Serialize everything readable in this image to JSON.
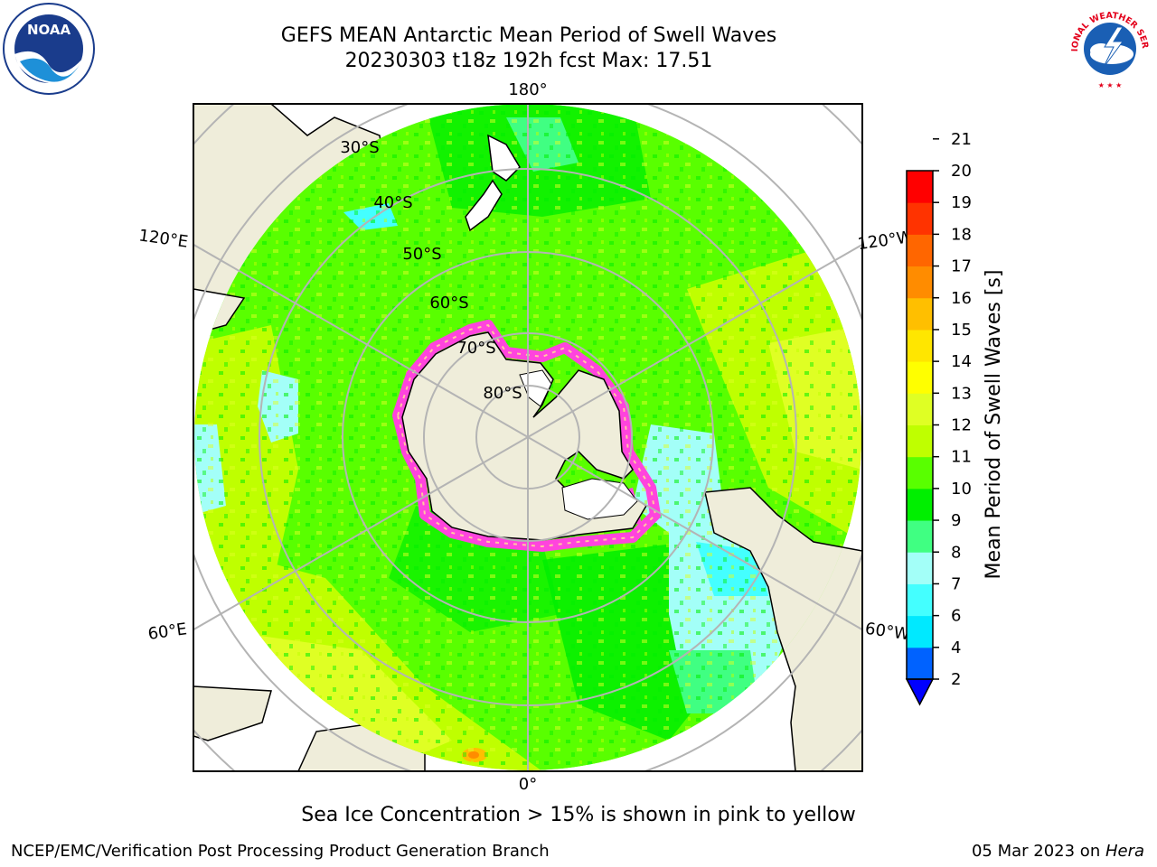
{
  "header": {
    "title_line1": "GEFS MEAN Antarctic Mean Period of Swell Waves",
    "title_line2": "20230303 t18z 192h fcst   Max: 17.51"
  },
  "logos": {
    "left": "noaa-logo",
    "left_text": "NOAA",
    "right": "national-weather-service-logo",
    "right_text": "NATIONAL WEATHER SERVICE"
  },
  "map": {
    "projection": "south-polar-stereographic",
    "longitude_labels": [
      "180°",
      "120°E",
      "120°W",
      "60°E",
      "60°W",
      "0°"
    ],
    "latitude_labels": [
      "30°S",
      "40°S",
      "50°S",
      "60°S",
      "70°S",
      "80°S"
    ],
    "colors": {
      "land": "#efedda",
      "ice_sheet": "#ffffff",
      "sea_ice": "#ff44dd",
      "grid": "#b4b4b4"
    }
  },
  "colorbar": {
    "label": "Mean Period of Swell Waves [s]",
    "ticks": [
      "2",
      "4",
      "6",
      "7",
      "8",
      "9",
      "10",
      "11",
      "12",
      "13",
      "14",
      "15",
      "16",
      "17",
      "18",
      "19",
      "20",
      "21"
    ],
    "colors": [
      "#0062ff",
      "#00e9ff",
      "#44ffff",
      "#a3fff8",
      "#40ff82",
      "#00ef00",
      "#59ff00",
      "#bfff00",
      "#dfff24",
      "#ffff00",
      "#ffe600",
      "#ffbf00",
      "#ff8c00",
      "#ff6600",
      "#ff3300",
      "#ff0000"
    ],
    "under_color": "#0000ff"
  },
  "footer": {
    "note": "Sea Ice Concentration > 15% is shown in pink to yellow",
    "left": "NCEP/EMC/Verification Post Processing Product Generation Branch",
    "right_prefix": "05 Mar 2023 on ",
    "right_host": "Hera"
  }
}
